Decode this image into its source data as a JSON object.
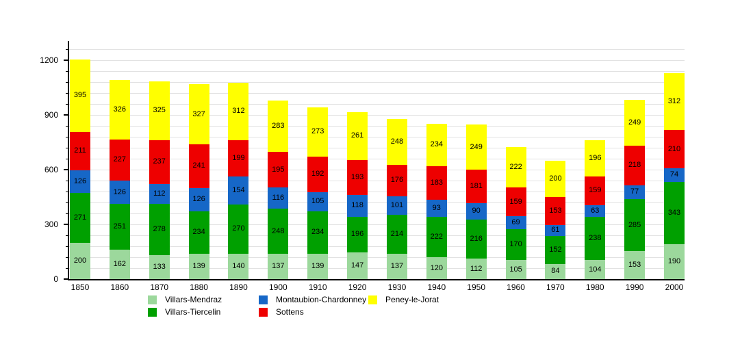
{
  "chart_data": {
    "type": "bar",
    "stacked": true,
    "title": "",
    "xlabel": "",
    "ylabel": "",
    "categories": [
      "1850",
      "1860",
      "1870",
      "1880",
      "1890",
      "1900",
      "1910",
      "1920",
      "1930",
      "1940",
      "1950",
      "1960",
      "1970",
      "1980",
      "1990",
      "2000"
    ],
    "series": [
      {
        "name": "Villars-Mendraz",
        "color": "#9cd89c",
        "values": [
          200,
          162,
          133,
          139,
          140,
          137,
          139,
          147,
          137,
          120,
          112,
          105,
          84,
          104,
          153,
          190
        ]
      },
      {
        "name": "Villars-Tiercelin",
        "color": "#00a000",
        "values": [
          271,
          251,
          278,
          234,
          270,
          248,
          234,
          196,
          214,
          222,
          216,
          170,
          152,
          238,
          285,
          343
        ]
      },
      {
        "name": "Montaubion-Chardonney",
        "color": "#1667c7",
        "values": [
          126,
          126,
          112,
          126,
          154,
          116,
          105,
          118,
          101,
          93,
          90,
          69,
          61,
          63,
          77,
          74
        ]
      },
      {
        "name": "Sottens",
        "color": "#ee0000",
        "values": [
          211,
          227,
          237,
          241,
          199,
          195,
          192,
          193,
          176,
          183,
          181,
          159,
          153,
          159,
          218,
          210
        ]
      },
      {
        "name": "Peney-le-Jorat",
        "color": "#ffff00",
        "values": [
          395,
          326,
          325,
          327,
          312,
          283,
          273,
          261,
          248,
          234,
          249,
          222,
          200,
          196,
          249,
          312
        ]
      }
    ],
    "yticks": [
      0,
      300,
      600,
      900,
      1200
    ],
    "ylim": [
      0,
      1300
    ],
    "minor_tick_step": 60,
    "grid": true,
    "legend_position": "bottom",
    "value_labels_shown": true
  },
  "colors": {
    "background": "#ffffff",
    "axis": "#000000",
    "gridline": "#e2e2e2",
    "text": "#000000"
  }
}
